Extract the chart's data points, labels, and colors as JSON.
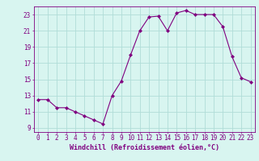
{
  "x": [
    0,
    1,
    2,
    3,
    4,
    5,
    6,
    7,
    8,
    9,
    10,
    11,
    12,
    13,
    14,
    15,
    16,
    17,
    18,
    19,
    20,
    21,
    22,
    23
  ],
  "y": [
    12.5,
    12.5,
    11.5,
    11.5,
    11.0,
    10.5,
    10.0,
    9.5,
    13.0,
    14.8,
    18.0,
    21.0,
    22.7,
    22.8,
    21.0,
    23.2,
    23.5,
    23.0,
    23.0,
    23.0,
    21.5,
    17.8,
    15.2,
    14.7
  ],
  "line_color": "#800080",
  "marker": "D",
  "marker_size": 2,
  "bg_color": "#d8f5f0",
  "grid_color": "#b0ddd8",
  "axis_color": "#800080",
  "tick_color": "#800080",
  "xlabel": "Windchill (Refroidissement éolien,°C)",
  "xlabel_fontsize": 6.0,
  "yticks": [
    9,
    11,
    13,
    15,
    17,
    19,
    21,
    23
  ],
  "xticks": [
    0,
    1,
    2,
    3,
    4,
    5,
    6,
    7,
    8,
    9,
    10,
    11,
    12,
    13,
    14,
    15,
    16,
    17,
    18,
    19,
    20,
    21,
    22,
    23
  ],
  "ylim": [
    8.5,
    24.0
  ],
  "xlim": [
    -0.5,
    23.5
  ],
  "tick_fontsize": 5.5
}
